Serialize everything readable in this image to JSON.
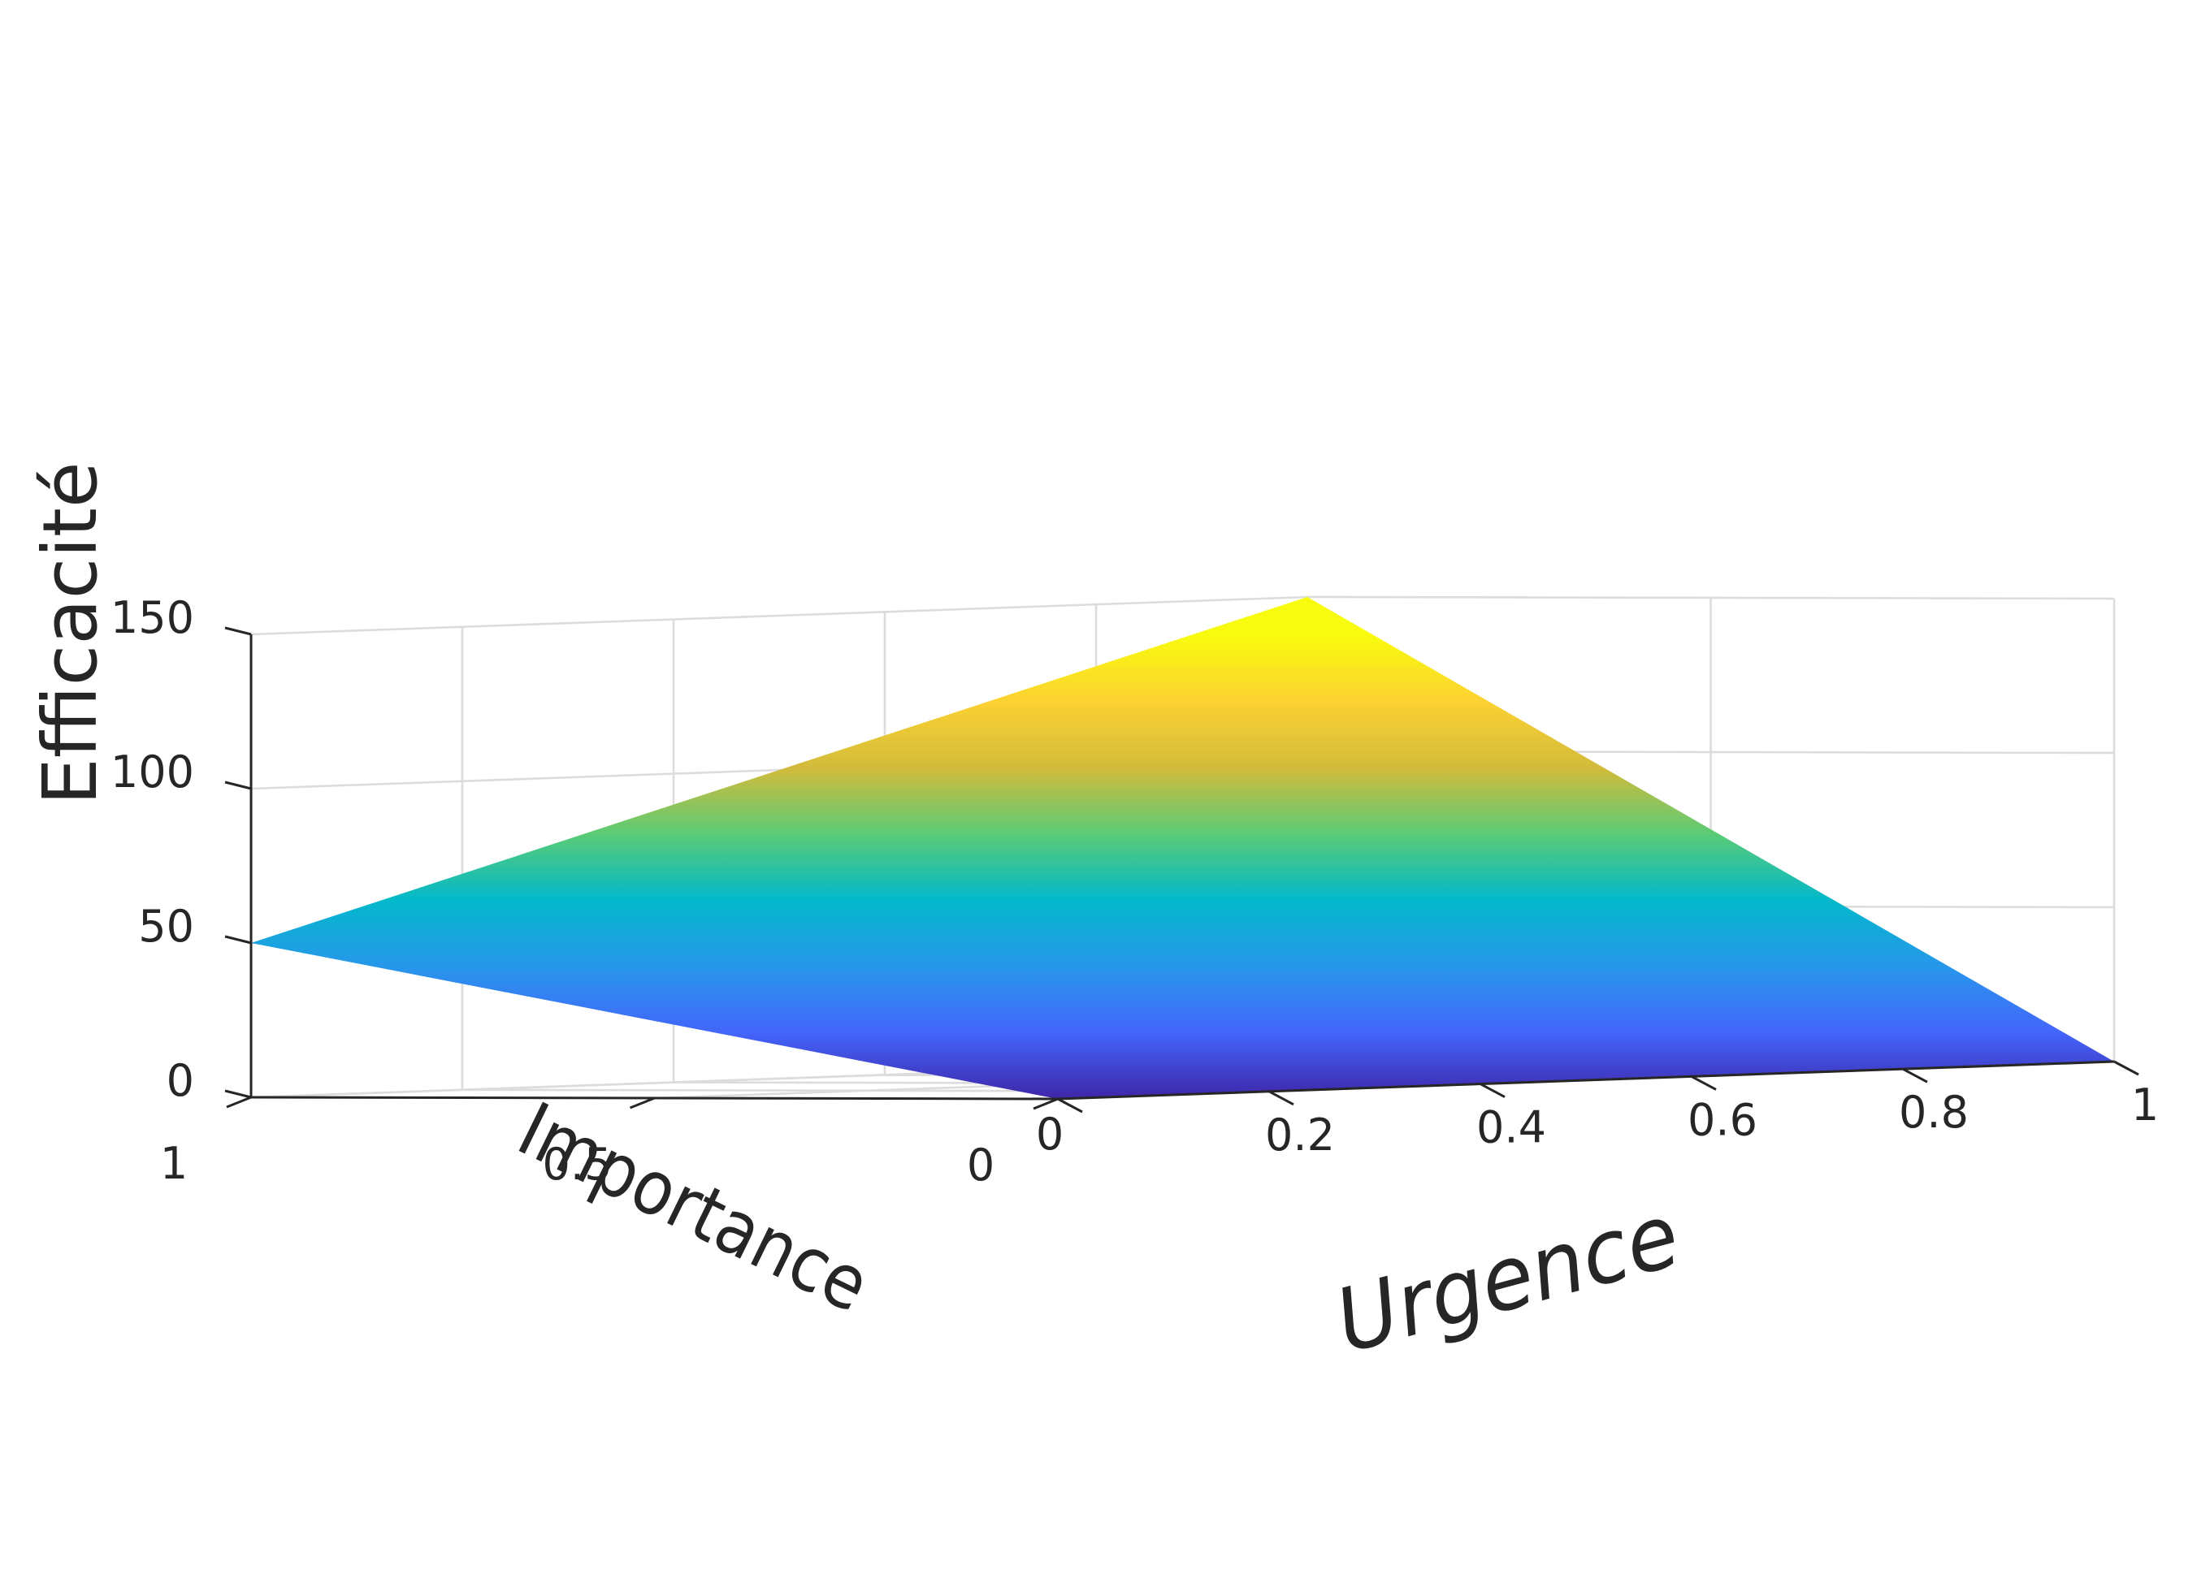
{
  "chart_data": {
    "type": "surface",
    "title": "",
    "xlabel": "Urgence",
    "ylabel": "Importance",
    "zlabel": "Efficacité",
    "x": [
      0,
      1
    ],
    "y": [
      0,
      1
    ],
    "z": [
      [
        0,
        50
      ],
      [
        0,
        150
      ]
    ],
    "xlim": [
      0,
      1
    ],
    "ylim": [
      0,
      1
    ],
    "zlim": [
      0,
      150
    ],
    "xticks": [
      "0",
      "0.2",
      "0.4",
      "0.6",
      "0.8",
      "1"
    ],
    "yticks": [
      "0",
      "0.5",
      "1"
    ],
    "zticks": [
      "0",
      "50",
      "100",
      "150"
    ],
    "grid": true,
    "colormap": [
      "#3e26a8",
      "#4365fb",
      "#2797eb",
      "#03b8cb",
      "#59cb76",
      "#d2bb3b",
      "#fcd131",
      "#f9fb0e"
    ]
  }
}
